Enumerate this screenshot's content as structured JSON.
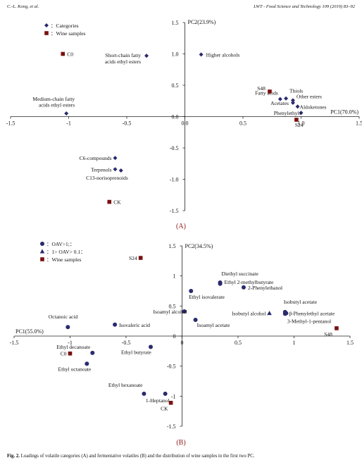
{
  "header": {
    "left": "C.-L. Kong, et al.",
    "right": "LWT - Food Science and Technology 109 (2019) 83–92"
  },
  "caption": {
    "label": "Fig. 2.",
    "text": "Loadings of volatile categories (A) and fermentative volatiles (B) and the distribution of wine samples in the first two PC."
  },
  "colors": {
    "marker_category": "#2a2a6e",
    "marker_sample": "#7a1010",
    "marker_volatile": "#2a2a6e",
    "axis": "#222222"
  },
  "chart_data": [
    {
      "type": "scatter",
      "panel_label": "(A)",
      "xlabel": "PC1(70.0%)",
      "ylabel": "PC2(23.9%)",
      "xlim": [
        -1.5,
        1.5
      ],
      "ylim": [
        -1.5,
        1.5
      ],
      "xticks": [
        "-1.5",
        "-1",
        "-0.5",
        "0.0",
        "0.5",
        "1.0",
        "1.5"
      ],
      "yticks": [
        "1.5",
        "1.0",
        "0.5",
        "0.0",
        "-0.5",
        "-1.0",
        "-1.5"
      ],
      "legend": [
        {
          "marker": "diamond",
          "label": "：Categories"
        },
        {
          "marker": "square",
          "label": "：Wine samples"
        }
      ],
      "series": [
        {
          "name": "Categories",
          "marker": "diamond",
          "points": [
            {
              "label": "Short-chain fatty\nacids ethyl esters",
              "x": -0.33,
              "y": 0.97
            },
            {
              "label": "Higher alcohols",
              "x": 0.14,
              "y": 0.99
            },
            {
              "label": "Medium-chain fatty\nacids ethyl esters",
              "x": -1.02,
              "y": 0.05
            },
            {
              "label": "Fatty acids",
              "x": 0.82,
              "y": 0.28
            },
            {
              "label": "Thiols",
              "x": 0.87,
              "y": 0.29
            },
            {
              "label": "Other esters",
              "x": 0.93,
              "y": 0.26
            },
            {
              "label": "Acetates",
              "x": 0.93,
              "y": 0.22
            },
            {
              "label": "Aldoketones",
              "x": 0.97,
              "y": 0.16
            },
            {
              "label": "Phenylethyls",
              "x": 1.0,
              "y": 0.06
            },
            {
              "label": "C6-compounds",
              "x": -0.6,
              "y": -0.66
            },
            {
              "label": "Terpenols",
              "x": -0.6,
              "y": -0.84
            },
            {
              "label": "C13-norisoprenoids",
              "x": -0.55,
              "y": -0.86
            }
          ]
        },
        {
          "name": "Wine samples",
          "marker": "square",
          "points": [
            {
              "label": "C0",
              "x": -1.05,
              "y": 1.0
            },
            {
              "label": "S48",
              "x": 0.73,
              "y": 0.4
            },
            {
              "label": "S24",
              "x": 0.96,
              "y": -0.05
            },
            {
              "label": "CK",
              "x": -0.65,
              "y": -1.36
            }
          ]
        }
      ]
    },
    {
      "type": "scatter",
      "panel_label": "(B)",
      "xlabel": "PC1(55.0%)",
      "ylabel": "PC2(34.5%)",
      "xlim": [
        -1.5,
        1.5
      ],
      "ylim": [
        -1.5,
        1.5
      ],
      "xticks": [
        "-1.5",
        "-1",
        "-0.5",
        "0",
        "0.5",
        "1",
        "1.5"
      ],
      "yticks": [
        "1.5",
        "1",
        "0.5",
        "0",
        "-0.5",
        "-1",
        "-1.5"
      ],
      "legend": [
        {
          "marker": "circle",
          "label": "：OAV>1;："
        },
        {
          "marker": "triangle",
          "label": "：1> OAV> 0.1："
        },
        {
          "marker": "square",
          "label": "：Wine samples"
        }
      ],
      "series": [
        {
          "name": "OAV>1",
          "marker": "circle",
          "points": [
            {
              "label": "Diethyl succinate",
              "x": 0.34,
              "y": 0.89
            },
            {
              "label": "Ethyl 2-methylbutyrate",
              "x": 0.34,
              "y": 0.87
            },
            {
              "label": "2-Phenylethanol",
              "x": 0.55,
              "y": 0.81
            },
            {
              "label": "Ethyl isovalerate",
              "x": 0.08,
              "y": 0.75
            },
            {
              "label": "Isoamyl alcohol",
              "x": 0.02,
              "y": 0.41
            },
            {
              "label": "Isobutyl acetate",
              "x": 0.92,
              "y": 0.4
            },
            {
              "label": "β-Phenylethyl acetate",
              "x": 0.93,
              "y": 0.38
            },
            {
              "label": "3-Methyl-1-pentanol",
              "x": 0.92,
              "y": 0.37
            },
            {
              "label": "Isoamyl acetate",
              "x": 0.12,
              "y": 0.27
            },
            {
              "label": "Octanoic acid",
              "x": -1.02,
              "y": 0.15
            },
            {
              "label": "Isovaleric acid",
              "x": -0.6,
              "y": 0.19
            },
            {
              "label": "Ethyl decanoate",
              "x": -0.8,
              "y": -0.28
            },
            {
              "label": "Ethyl butyrate",
              "x": -0.28,
              "y": -0.18
            },
            {
              "label": "Ethyl octanoate",
              "x": -0.85,
              "y": -0.46
            },
            {
              "label": "Ethyl hexanoate",
              "x": -0.34,
              "y": -0.96
            },
            {
              "label": "1-Heptanol",
              "x": -0.15,
              "y": -0.96
            }
          ]
        },
        {
          "name": "1>OAV>0.1",
          "marker": "triangle",
          "points": [
            {
              "label": "Isobutyl alcohol",
              "x": 0.78,
              "y": 0.38
            }
          ]
        },
        {
          "name": "Wine samples",
          "marker": "square",
          "points": [
            {
              "label": "S24",
              "x": -0.37,
              "y": 1.3
            },
            {
              "label": "S48",
              "x": 1.38,
              "y": 0.13
            },
            {
              "label": "C0",
              "x": -1.0,
              "y": -0.29
            },
            {
              "label": "CK",
              "x": -0.1,
              "y": -1.11
            }
          ]
        }
      ]
    }
  ]
}
